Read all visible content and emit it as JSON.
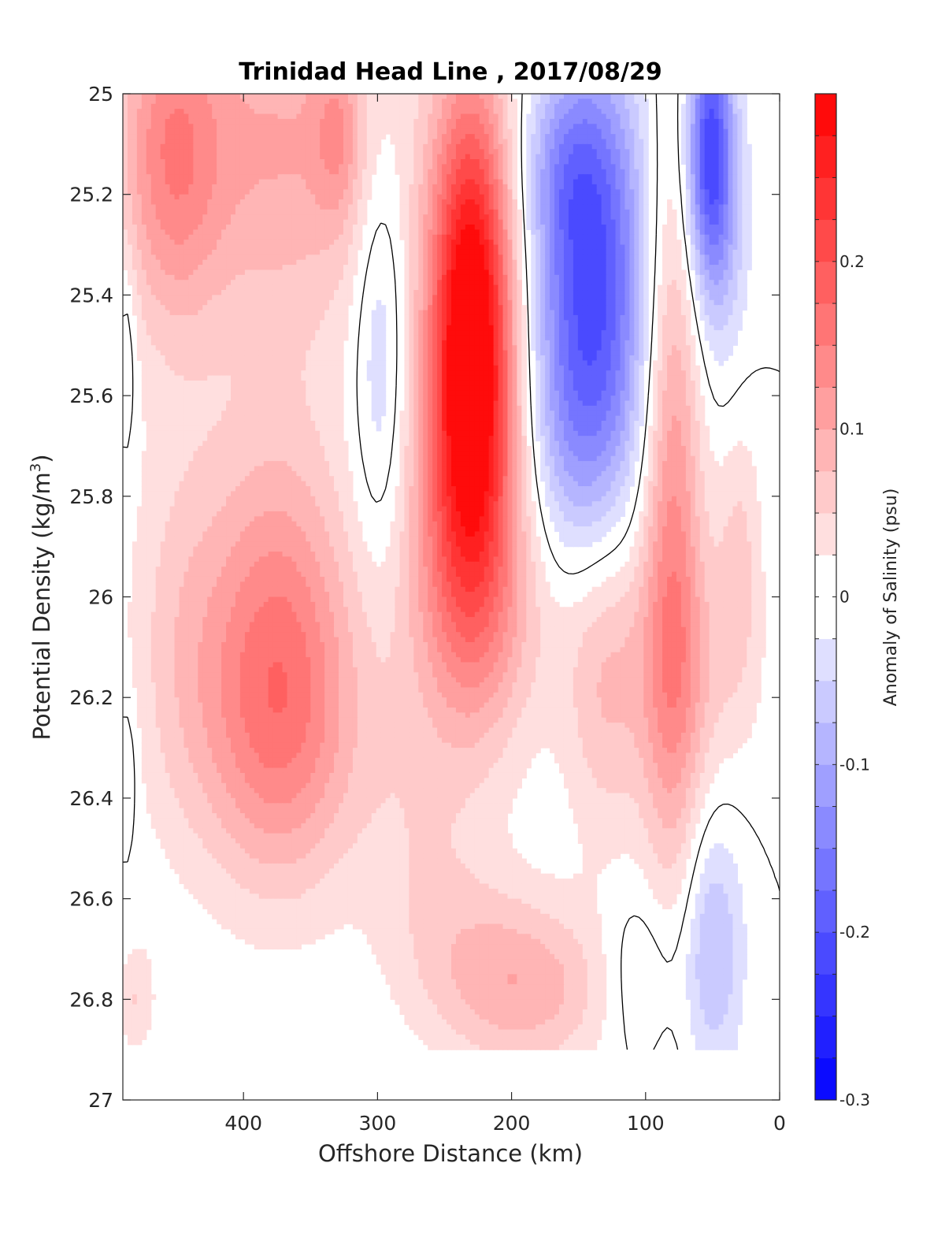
{
  "chart_data": {
    "type": "heatmap",
    "subtype": "filled-contour",
    "title": "Trinidad Head Line , 2017/08/29",
    "xlabel": "Offshore Distance (km)",
    "ylabel": "Potential Density (kg/m",
    "ylabel_sup": "3",
    "ylabel_close": ")",
    "xlim": [
      490,
      0
    ],
    "ylim": [
      25,
      27
    ],
    "x_reversed": true,
    "y_reversed": true,
    "x_ticks": [
      400,
      300,
      200,
      100,
      0
    ],
    "x_tick_labels": [
      "400",
      "300",
      "200",
      "100",
      "0"
    ],
    "y_ticks": [
      25,
      25.2,
      25.4,
      25.6,
      25.8,
      26,
      26.2,
      26.4,
      26.6,
      26.8,
      27
    ],
    "y_tick_labels": [
      "25",
      "25.2",
      "25.4",
      "25.6",
      "25.8",
      "26",
      "26.2",
      "26.4",
      "26.6",
      "26.8",
      "27"
    ],
    "data_y_max": 26.9,
    "grid": false,
    "colorbar": {
      "label": "Anomaly of Salinity (psu)",
      "range": [
        -0.3,
        0.3
      ],
      "levels": [
        -0.3,
        -0.275,
        -0.25,
        -0.225,
        -0.2,
        -0.175,
        -0.15,
        -0.125,
        -0.1,
        -0.075,
        -0.05,
        -0.025,
        0,
        0.025,
        0.05,
        0.075,
        0.1,
        0.125,
        0.15,
        0.175,
        0.2,
        0.225,
        0.25,
        0.275,
        0.3
      ],
      "ticks": [
        -0.3,
        -0.2,
        -0.1,
        0,
        0.1,
        0.2
      ],
      "tick_labels": [
        "-0.3",
        "-0.2",
        "-0.1",
        "0",
        "0.1",
        "0.2"
      ],
      "colormap": "blue-white-red",
      "negative_color": "#0000ff",
      "zero_color": "#ffffff",
      "positive_color": "#ff0000"
    },
    "zero_contour": "black",
    "features": [
      {
        "x": 230,
        "y": 25.45,
        "sx": 22,
        "sy": 0.34,
        "value": 0.3
      },
      {
        "x": 232,
        "y": 25.85,
        "sx": 33,
        "sy": 0.3,
        "value": 0.12
      },
      {
        "x": 218,
        "y": 26.05,
        "sx": 50,
        "sy": 0.18,
        "value": 0.035
      },
      {
        "x": 140,
        "y": 25.35,
        "sx": 30,
        "sy": 0.3,
        "value": -0.2
      },
      {
        "x": 160,
        "y": 25.15,
        "sx": 22,
        "sy": 0.12,
        "value": -0.05
      },
      {
        "x": 150,
        "y": 25.7,
        "sx": 30,
        "sy": 0.2,
        "value": -0.06
      },
      {
        "x": 52,
        "y": 25.1,
        "sx": 12,
        "sy": 0.18,
        "value": -0.2
      },
      {
        "x": 45,
        "y": 25.3,
        "sx": 16,
        "sy": 0.2,
        "value": -0.06
      },
      {
        "x": 298,
        "y": 25.5,
        "sx": 14,
        "sy": 0.3,
        "value": -0.065
      },
      {
        "x": 370,
        "y": 25.1,
        "sx": 60,
        "sy": 0.28,
        "value": 0.1
      },
      {
        "x": 455,
        "y": 25.12,
        "sx": 28,
        "sy": 0.24,
        "value": 0.12
      },
      {
        "x": 330,
        "y": 25.08,
        "sx": 12,
        "sy": 0.12,
        "value": 0.06
      },
      {
        "x": 375,
        "y": 26.1,
        "sx": 40,
        "sy": 0.3,
        "value": 0.14
      },
      {
        "x": 370,
        "y": 26.3,
        "sx": 50,
        "sy": 0.2,
        "value": 0.05
      },
      {
        "x": 450,
        "y": 26.05,
        "sx": 28,
        "sy": 0.3,
        "value": 0.045
      },
      {
        "x": 80,
        "y": 25.85,
        "sx": 16,
        "sy": 0.55,
        "value": 0.13
      },
      {
        "x": 65,
        "y": 26.15,
        "sx": 35,
        "sy": 0.18,
        "value": 0.05
      },
      {
        "x": 30,
        "y": 25.9,
        "sx": 12,
        "sy": 0.2,
        "value": 0.05
      },
      {
        "x": 130,
        "y": 26.15,
        "sx": 22,
        "sy": 0.25,
        "value": 0.07
      },
      {
        "x": 185,
        "y": 26.78,
        "sx": 45,
        "sy": 0.12,
        "value": 0.08
      },
      {
        "x": 230,
        "y": 26.7,
        "sx": 40,
        "sy": 0.14,
        "value": 0.035
      },
      {
        "x": 270,
        "y": 26.5,
        "sx": 30,
        "sy": 0.2,
        "value": 0.03
      },
      {
        "x": 100,
        "y": 26.75,
        "sx": 22,
        "sy": 0.12,
        "value": -0.045
      },
      {
        "x": 50,
        "y": 26.7,
        "sx": 16,
        "sy": 0.18,
        "value": -0.08
      },
      {
        "x": 480,
        "y": 26.8,
        "sx": 10,
        "sy": 0.08,
        "value": 0.05
      },
      {
        "x": 487,
        "y": 25.5,
        "sx": 5,
        "sy": 0.15,
        "value": -0.04
      },
      {
        "x": 487,
        "y": 26.35,
        "sx": 5,
        "sy": 0.1,
        "value": -0.04
      }
    ]
  }
}
